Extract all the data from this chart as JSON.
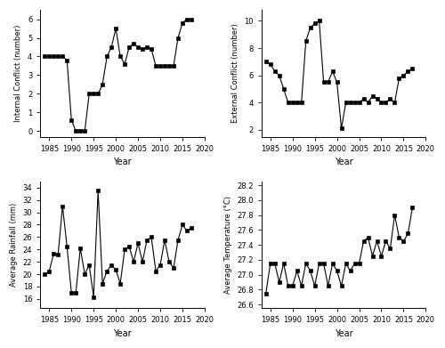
{
  "internal_conflict": {
    "years": [
      1984,
      1985,
      1986,
      1987,
      1988,
      1989,
      1990,
      1991,
      1992,
      1993,
      1994,
      1995,
      1996,
      1997,
      1998,
      1999,
      2000,
      2001,
      2002,
      2003,
      2004,
      2005,
      2006,
      2007,
      2008,
      2009,
      2010,
      2011,
      2012,
      2013,
      2014,
      2015,
      2016,
      2017
    ],
    "values": [
      4,
      4,
      4,
      4,
      4,
      3.8,
      0.6,
      0,
      0,
      0,
      2,
      2,
      2,
      2.5,
      4,
      4.5,
      5.5,
      4,
      3.6,
      4.5,
      4.7,
      4.5,
      4.4,
      4.5,
      4.4,
      3.5,
      3.5,
      3.5,
      3.5,
      3.5,
      5,
      5.8,
      6,
      6
    ],
    "ylabel": "Internal Conflict (number)",
    "ylim": [
      -0.3,
      6.5
    ],
    "yticks": [
      0,
      1,
      2,
      3,
      4,
      5,
      6
    ]
  },
  "external_conflict": {
    "years": [
      1984,
      1985,
      1986,
      1987,
      1988,
      1989,
      1990,
      1991,
      1992,
      1993,
      1994,
      1995,
      1996,
      1997,
      1998,
      1999,
      2000,
      2001,
      2002,
      2003,
      2004,
      2005,
      2006,
      2007,
      2008,
      2009,
      2010,
      2011,
      2012,
      2013,
      2014,
      2015,
      2016,
      2017
    ],
    "values": [
      7,
      6.8,
      6.3,
      6,
      5,
      4,
      4,
      4,
      4,
      8.5,
      9.5,
      9.8,
      10,
      5.5,
      5.5,
      6.3,
      5.5,
      2.1,
      4,
      4,
      4,
      4,
      4.3,
      4,
      4.5,
      4.3,
      4,
      4,
      4.3,
      4,
      5.8,
      6,
      6.3,
      6.5
    ],
    "ylabel": "External Conflict (number)",
    "ylim": [
      1.5,
      10.8
    ],
    "yticks": [
      2,
      4,
      6,
      8,
      10
    ]
  },
  "rainfall": {
    "years": [
      1984,
      1985,
      1986,
      1987,
      1988,
      1989,
      1990,
      1991,
      1992,
      1993,
      1994,
      1995,
      1996,
      1997,
      1998,
      1999,
      2000,
      2001,
      2002,
      2003,
      2004,
      2005,
      2006,
      2007,
      2008,
      2009,
      2010,
      2011,
      2012,
      2013,
      2014,
      2015,
      2016,
      2017
    ],
    "values": [
      20,
      20.5,
      23.3,
      23.2,
      31,
      24.5,
      17,
      17,
      24.2,
      20,
      21.5,
      16.3,
      33.5,
      18.5,
      20.5,
      21.5,
      20.7,
      18.5,
      24.0,
      24.5,
      22,
      25,
      22,
      25.5,
      26,
      20.5,
      21.5,
      25.5,
      22,
      21,
      25.5,
      28,
      27,
      27.5
    ],
    "ylabel": "Average Rainfall (mm)",
    "ylim": [
      14.5,
      35
    ],
    "yticks": [
      16,
      18,
      20,
      22,
      24,
      26,
      28,
      30,
      32,
      34
    ]
  },
  "temperature": {
    "years": [
      1984,
      1985,
      1986,
      1987,
      1988,
      1989,
      1990,
      1991,
      1992,
      1993,
      1994,
      1995,
      1996,
      1997,
      1998,
      1999,
      2000,
      2001,
      2002,
      2003,
      2004,
      2005,
      2006,
      2007,
      2008,
      2009,
      2010,
      2011,
      2012,
      2013,
      2014,
      2015,
      2016,
      2017
    ],
    "values": [
      26.75,
      27.15,
      27.15,
      26.9,
      27.15,
      26.85,
      26.85,
      27.05,
      26.85,
      27.15,
      27.05,
      26.85,
      27.15,
      27.15,
      26.85,
      27.15,
      27.05,
      26.85,
      27.15,
      27.05,
      27.15,
      27.15,
      27.45,
      27.5,
      27.25,
      27.45,
      27.25,
      27.45,
      27.35,
      27.8,
      27.5,
      27.45,
      27.55,
      27.9
    ],
    "ylabel": "Average Temperature (°C)",
    "ylim": [
      26.55,
      28.25
    ],
    "yticks": [
      26.6,
      26.8,
      27.0,
      27.2,
      27.4,
      27.6,
      27.8,
      28.0,
      28.2
    ]
  },
  "xlim": [
    1983,
    2020
  ],
  "xticks": [
    1985,
    1990,
    1995,
    2000,
    2005,
    2010,
    2015,
    2020
  ],
  "xlabel": "Year",
  "marker": "s",
  "markersize": 2.5,
  "linewidth": 0.8,
  "color": "black"
}
